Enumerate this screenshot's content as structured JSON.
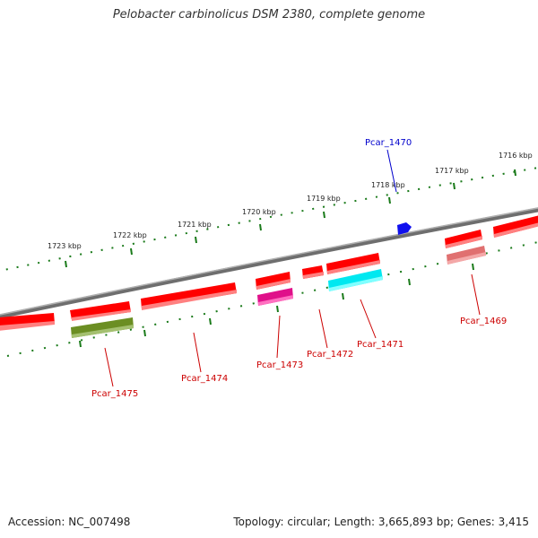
{
  "title": "Pelobacter carbinolicus DSM 2380, complete genome",
  "footer": {
    "accession": "Accession: NC_007498",
    "summary": "Topology: circular; Length: 3,665,893 bp; Genes: 3,415"
  },
  "colors": {
    "forward_gene": "#ff0000",
    "highlight_blue": "#0000ee",
    "label_forward": "#0000cc",
    "label_reverse": "#cc0000",
    "backbone": "#808080",
    "tick": "#1a7a1a"
  },
  "scale": {
    "unit": "kbp",
    "ticks": [
      "1716 kbp",
      "1717 kbp",
      "1718 kbp",
      "1719 kbp",
      "1720 kbp",
      "1721 kbp",
      "1722 kbp",
      "1723 kbp"
    ]
  },
  "genes": [
    {
      "name": "Pcar_1470",
      "strand": "forward",
      "color": "#1a1aff",
      "label": "Pcar_1470"
    },
    {
      "name": "Pcar_1469",
      "strand": "reverse",
      "color": "#f08080",
      "label": "Pcar_1469"
    },
    {
      "name": "Pcar_1471",
      "strand": "reverse",
      "color": "#00ffff",
      "label": "Pcar_1471"
    },
    {
      "name": "Pcar_1472",
      "strand": "reverse",
      "color": "#ff0000",
      "label": "Pcar_1472"
    },
    {
      "name": "Pcar_1473",
      "strand": "reverse",
      "color": "#ff1493",
      "label": "Pcar_1473"
    },
    {
      "name": "Pcar_1474",
      "strand": "reverse",
      "color": "#ff0000",
      "label": "Pcar_1474"
    },
    {
      "name": "Pcar_1475",
      "strand": "reverse",
      "color": "#6b8e23",
      "label": "Pcar_1475"
    }
  ]
}
